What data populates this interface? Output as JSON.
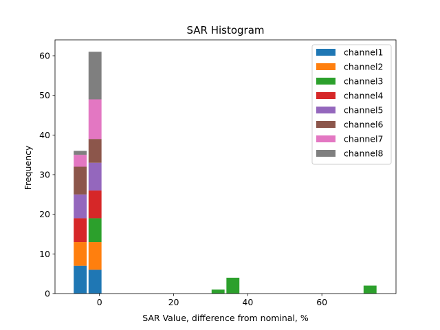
{
  "chart_data": {
    "type": "bar",
    "stacked": true,
    "title": "SAR Histogram",
    "xlabel": "SAR Value, difference from nominal, %",
    "ylabel": "Frequency",
    "xlim": [
      -12,
      80
    ],
    "ylim": [
      0,
      64
    ],
    "xticks": [
      0,
      20,
      40,
      60
    ],
    "yticks": [
      0,
      10,
      20,
      30,
      40,
      50,
      60
    ],
    "bin_width": 3.5,
    "legend_position": "top-right",
    "series": [
      {
        "name": "channel1",
        "color": "#1f77b4",
        "bars": [
          {
            "x": -5.2,
            "value": 7
          },
          {
            "x": -1.2,
            "value": 6
          }
        ]
      },
      {
        "name": "channel2",
        "color": "#ff7f0e",
        "bars": [
          {
            "x": -5.2,
            "value": 6
          },
          {
            "x": -1.2,
            "value": 7
          }
        ]
      },
      {
        "name": "channel3",
        "color": "#2ca02c",
        "bars": [
          {
            "x": -1.2,
            "value": 6
          },
          {
            "x": 32.0,
            "value": 1
          },
          {
            "x": 36.0,
            "value": 4
          },
          {
            "x": 73.0,
            "value": 2
          }
        ]
      },
      {
        "name": "channel4",
        "color": "#d62728",
        "bars": [
          {
            "x": -5.2,
            "value": 6
          },
          {
            "x": -1.2,
            "value": 7
          }
        ]
      },
      {
        "name": "channel5",
        "color": "#9467bd",
        "bars": [
          {
            "x": -5.2,
            "value": 6
          },
          {
            "x": -1.2,
            "value": 7
          }
        ]
      },
      {
        "name": "channel6",
        "color": "#8c564b",
        "bars": [
          {
            "x": -5.2,
            "value": 7
          },
          {
            "x": -1.2,
            "value": 6
          }
        ]
      },
      {
        "name": "channel7",
        "color": "#e377c2",
        "bars": [
          {
            "x": -5.2,
            "value": 3
          },
          {
            "x": -1.2,
            "value": 10
          }
        ]
      },
      {
        "name": "channel8",
        "color": "#7f7f7f",
        "bars": [
          {
            "x": -5.2,
            "value": 1
          },
          {
            "x": -1.2,
            "value": 12
          }
        ]
      }
    ]
  }
}
